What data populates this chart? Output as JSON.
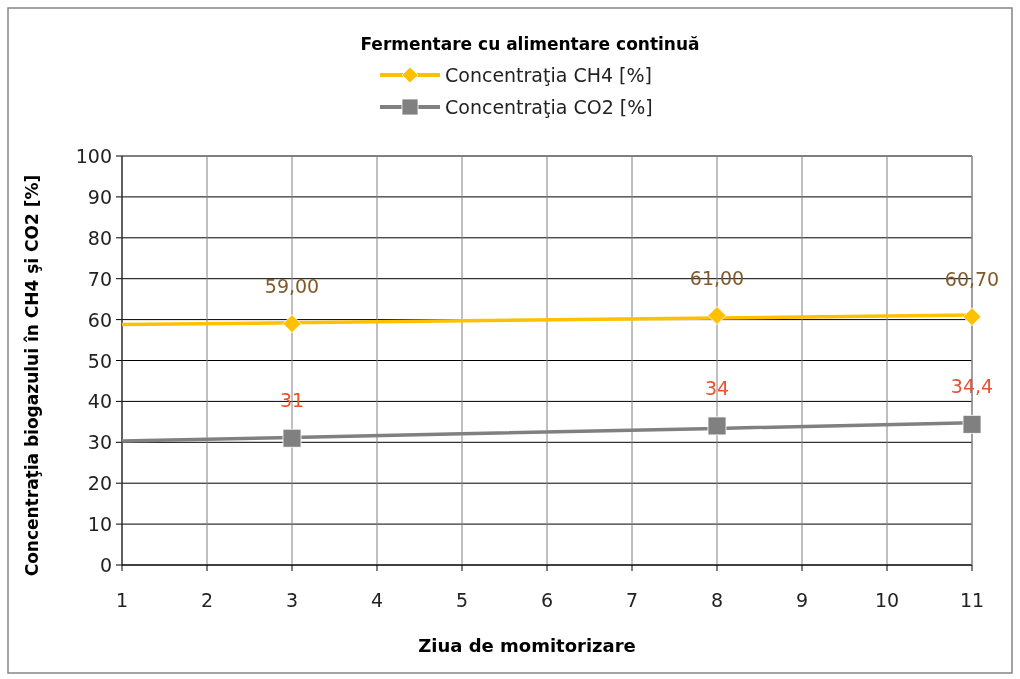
{
  "chart_data": {
    "type": "scatter",
    "title": "Fermentare cu alimentare continuă",
    "xlabel": "Ziua de momitorizare",
    "ylabel": "Concentraţia biogazului în CH4 şi CO2  [%]",
    "x": [
      3,
      8,
      11
    ],
    "series": [
      {
        "name": "Concentraţia CH4 [%]",
        "color": "#ffc000",
        "marker": "diamond",
        "values": [
          59,
          61,
          60.7
        ],
        "value_labels": [
          "59,00",
          "61,00",
          "60,70"
        ]
      },
      {
        "name": "Concentraţia CO2 [%]",
        "color": "#808080",
        "marker": "square",
        "values": [
          31,
          34,
          34.4
        ],
        "value_labels": [
          "31",
          "34",
          "34,4"
        ]
      },
      {
        "type": "line",
        "color": "#ffc000",
        "x": [
          1,
          3,
          5,
          8,
          11
        ],
        "values": [
          58.8,
          59.2,
          59.7,
          60.4,
          61.1
        ]
      },
      {
        "type": "line",
        "color": "#808080",
        "x": [
          1,
          3,
          5,
          8,
          11
        ],
        "values": [
          30.3,
          31.2,
          32.1,
          33.4,
          34.8
        ]
      }
    ],
    "xlim": [
      1,
      11
    ],
    "xticks": [
      1,
      2,
      3,
      4,
      5,
      6,
      7,
      8,
      9,
      10,
      11
    ],
    "ylim": [
      0,
      100
    ],
    "yticks": [
      0,
      10,
      20,
      30,
      40,
      50,
      60,
      70,
      80,
      90,
      100
    ],
    "grid": true,
    "legend": "top"
  }
}
